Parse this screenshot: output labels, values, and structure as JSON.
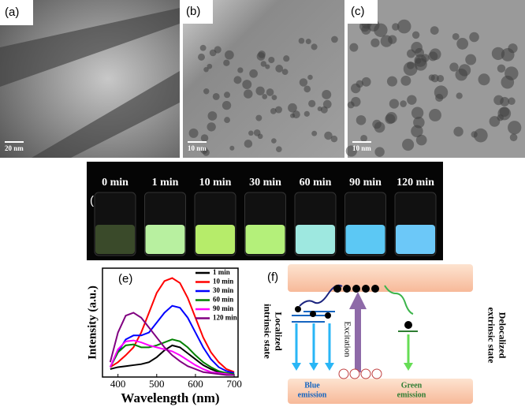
{
  "panels": {
    "a": "(a)",
    "b": "(b)",
    "c": "(c)",
    "d": "(d)",
    "e": "(e)",
    "f": "(f)"
  },
  "tem": {
    "scale_a": "20 nm",
    "scale_b": "10 nm",
    "scale_c": "10 nm"
  },
  "vials": [
    {
      "label": "0 min",
      "color": "#3a4a2a"
    },
    {
      "label": "1 min",
      "color": "#b8f0a0"
    },
    {
      "label": "10 min",
      "color": "#b6ec6a"
    },
    {
      "label": "30 min",
      "color": "#b4f07a"
    },
    {
      "label": "60 min",
      "color": "#9ee8e0"
    },
    {
      "label": "90 min",
      "color": "#5cc8f4"
    },
    {
      "label": "120 min",
      "color": "#6cc8f8"
    }
  ],
  "chart_data": {
    "type": "line",
    "xlabel": "Wavelength (nm)",
    "ylabel": "Intensity (a.u.)",
    "x": [
      380,
      400,
      420,
      440,
      460,
      480,
      500,
      520,
      540,
      560,
      580,
      600,
      620,
      640,
      660,
      680,
      700
    ],
    "xlim": [
      360,
      710
    ],
    "xticks": [
      400,
      500,
      600,
      700
    ],
    "ylim": [
      0,
      1.1
    ],
    "series": [
      {
        "name": "1 min",
        "color": "#000000",
        "values": [
          0.08,
          0.1,
          0.11,
          0.12,
          0.13,
          0.15,
          0.2,
          0.27,
          0.32,
          0.3,
          0.24,
          0.18,
          0.12,
          0.08,
          0.05,
          0.04,
          0.03
        ]
      },
      {
        "name": "10 min",
        "color": "#ff0000",
        "values": [
          0.1,
          0.15,
          0.22,
          0.3,
          0.45,
          0.65,
          0.85,
          0.97,
          1.0,
          0.95,
          0.8,
          0.6,
          0.4,
          0.25,
          0.15,
          0.08,
          0.05
        ]
      },
      {
        "name": "30 min",
        "color": "#0000ff",
        "values": [
          0.1,
          0.25,
          0.38,
          0.42,
          0.42,
          0.45,
          0.55,
          0.65,
          0.72,
          0.7,
          0.6,
          0.45,
          0.3,
          0.18,
          0.1,
          0.06,
          0.04
        ]
      },
      {
        "name": "60 min",
        "color": "#008000",
        "values": [
          0.1,
          0.25,
          0.32,
          0.33,
          0.3,
          0.3,
          0.32,
          0.35,
          0.38,
          0.36,
          0.3,
          0.22,
          0.15,
          0.1,
          0.06,
          0.04,
          0.03
        ]
      },
      {
        "name": "90 min",
        "color": "#ff00ff",
        "values": [
          0.1,
          0.28,
          0.36,
          0.37,
          0.35,
          0.32,
          0.3,
          0.28,
          0.26,
          0.22,
          0.17,
          0.12,
          0.08,
          0.05,
          0.04,
          0.03,
          0.02
        ]
      },
      {
        "name": "120 min",
        "color": "#800080",
        "values": [
          0.15,
          0.45,
          0.62,
          0.65,
          0.6,
          0.5,
          0.4,
          0.3,
          0.22,
          0.16,
          0.11,
          0.08,
          0.05,
          0.04,
          0.03,
          0.02,
          0.02
        ]
      }
    ]
  },
  "diagram": {
    "left_1": "Localized",
    "left_2": "intrinsic state",
    "excitation": "Excitation",
    "blue_1": "Blue",
    "blue_2": "emission",
    "green_1": "Green",
    "green_2": "emission",
    "right_1": "Delocalized",
    "right_2": "extrinsic state"
  }
}
